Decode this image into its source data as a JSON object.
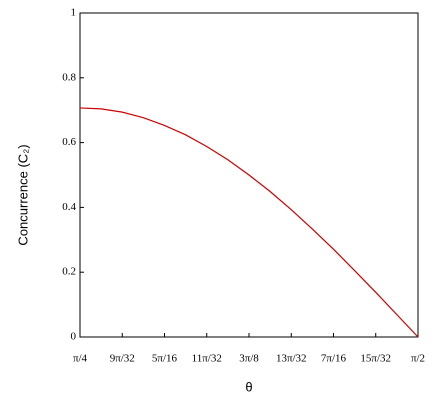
{
  "chart_data": {
    "type": "line",
    "x_label": "θ",
    "y_label": "Concurrence (C₂)",
    "x": [
      0.7854,
      0.8345,
      0.8836,
      0.9327,
      0.9817,
      1.0308,
      1.0799,
      1.129,
      1.1781,
      1.2272,
      1.2763,
      1.3254,
      1.3744,
      1.4235,
      1.4726,
      1.5217,
      1.5708
    ],
    "series": [
      {
        "color": "#cc0000",
        "values": [
          0.707,
          0.704,
          0.694,
          0.677,
          0.653,
          0.624,
          0.588,
          0.547,
          0.5,
          0.449,
          0.393,
          0.333,
          0.271,
          0.205,
          0.138,
          0.069,
          0
        ]
      }
    ],
    "xlim": [
      0.7854,
      1.5708
    ],
    "xticks": [
      {
        "value": 0.7854,
        "label": "π/4"
      },
      {
        "value": 0.8836,
        "label": "9π/32"
      },
      {
        "value": 0.9817,
        "label": "5π/16"
      },
      {
        "value": 1.0799,
        "label": "11π/32"
      },
      {
        "value": 1.1781,
        "label": "3π/8"
      },
      {
        "value": 1.2763,
        "label": "13π/32"
      },
      {
        "value": 1.3744,
        "label": "7π/16"
      },
      {
        "value": 1.4726,
        "label": "15π/32"
      },
      {
        "value": 1.5708,
        "label": "π/2"
      }
    ],
    "ylim": [
      0,
      1
    ],
    "yticks": [
      0,
      0.2,
      0.4,
      0.6,
      0.8,
      1
    ]
  }
}
